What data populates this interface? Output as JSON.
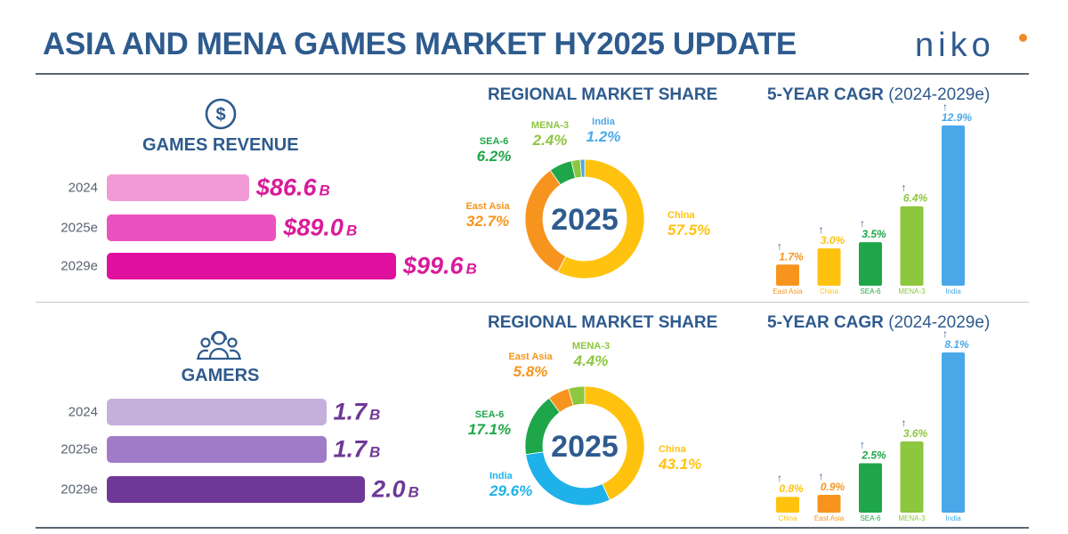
{
  "header": {
    "title": "ASIA AND MENA GAMES MARKET HY2025 UPDATE",
    "logo_text": "niko"
  },
  "revenue": {
    "title": "GAMES REVENUE",
    "icon": "dollar-circle-icon",
    "rows": [
      {
        "label": "2024",
        "amount": "$86.6",
        "unit": "B",
        "value": 86.6,
        "color": "#f19ad6"
      },
      {
        "label": "2025e",
        "amount": "$89.0",
        "unit": "B",
        "value": 89.0,
        "color": "#ec52bf"
      },
      {
        "label": "2029e",
        "amount": "$99.6",
        "unit": "B",
        "value": 99.6,
        "color": "#e0109f"
      }
    ],
    "value_color": "#d81b9a",
    "share": {
      "title": "REGIONAL MARKET SHARE",
      "center": "2025",
      "segments": [
        {
          "name": "China",
          "display": "57.5%",
          "value": 57.5,
          "color": "#ffc20e"
        },
        {
          "name": "East Asia",
          "display": "32.7%",
          "value": 32.7,
          "color": "#f7941d"
        },
        {
          "name": "SEA-6",
          "display": "6.2%",
          "value": 6.2,
          "color": "#1fa64a"
        },
        {
          "name": "MENA-3",
          "display": "2.4%",
          "value": 2.4,
          "color": "#8dc63f"
        },
        {
          "name": "India",
          "display": "1.2%",
          "value": 1.2,
          "color": "#4aa8e8"
        }
      ]
    },
    "cagr": {
      "title": "5-YEAR CAGR",
      "subtitle": "(2024-2029e)",
      "bars": [
        {
          "name": "East Asia",
          "display": "1.7%",
          "value": 1.7,
          "color": "#f7941d"
        },
        {
          "name": "China",
          "display": "3.0%",
          "value": 3.0,
          "color": "#ffc20e"
        },
        {
          "name": "SEA-6",
          "display": "3.5%",
          "value": 3.5,
          "color": "#1fa64a"
        },
        {
          "name": "MENA-3",
          "display": "6.4%",
          "value": 6.4,
          "color": "#8dc63f"
        },
        {
          "name": "India",
          "display": "12.9%",
          "value": 12.9,
          "color": "#4aa8e8"
        }
      ]
    }
  },
  "gamers": {
    "title": "GAMERS",
    "icon": "gamers-headset-icon",
    "rows": [
      {
        "label": "2024",
        "amount": "1.7",
        "unit": "B",
        "value": 1.7,
        "color": "#c5b0dc"
      },
      {
        "label": "2025e",
        "amount": "1.7",
        "unit": "B",
        "value": 1.7,
        "color": "#a17bc7"
      },
      {
        "label": "2029e",
        "amount": "2.0",
        "unit": "B",
        "value": 2.0,
        "color": "#6f3896"
      }
    ],
    "value_color": "#6f3896",
    "share": {
      "title": "REGIONAL MARKET SHARE",
      "center": "2025",
      "segments": [
        {
          "name": "China",
          "display": "43.1%",
          "value": 43.1,
          "color": "#ffc20e"
        },
        {
          "name": "India",
          "display": "29.6%",
          "value": 29.6,
          "color": "#1eb1ea"
        },
        {
          "name": "SEA-6",
          "display": "17.1%",
          "value": 17.1,
          "color": "#1fa64a"
        },
        {
          "name": "East Asia",
          "display": "5.8%",
          "value": 5.8,
          "color": "#f7941d"
        },
        {
          "name": "MENA-3",
          "display": "4.4%",
          "value": 4.4,
          "color": "#8dc63f"
        }
      ]
    },
    "cagr": {
      "title": "5-YEAR CAGR",
      "subtitle": "(2024-2029e)",
      "bars": [
        {
          "name": "China",
          "display": "0.8%",
          "value": 0.8,
          "color": "#ffc20e"
        },
        {
          "name": "East Asia",
          "display": "0.9%",
          "value": 0.9,
          "color": "#f7941d"
        },
        {
          "name": "SEA-6",
          "display": "2.5%",
          "value": 2.5,
          "color": "#1fa64a"
        },
        {
          "name": "MENA-3",
          "display": "3.6%",
          "value": 3.6,
          "color": "#8dc63f"
        },
        {
          "name": "India",
          "display": "8.1%",
          "value": 8.1,
          "color": "#4aa8e8"
        }
      ]
    }
  },
  "chart_data": [
    {
      "type": "bar",
      "title": "GAMES REVENUE",
      "categories": [
        "2024",
        "2025e",
        "2029e"
      ],
      "values": [
        86.6,
        89.0,
        99.6
      ],
      "unit": "$B",
      "orientation": "horizontal"
    },
    {
      "type": "pie",
      "title": "REGIONAL MARKET SHARE",
      "center_label": "2025",
      "categories": [
        "China",
        "East Asia",
        "SEA-6",
        "MENA-3",
        "India"
      ],
      "values": [
        57.5,
        32.7,
        6.2,
        2.4,
        1.2
      ],
      "unit": "%"
    },
    {
      "type": "bar",
      "title": "5-YEAR CAGR (2024-2029e)",
      "categories": [
        "East Asia",
        "China",
        "SEA-6",
        "MENA-3",
        "India"
      ],
      "values": [
        1.7,
        3.0,
        3.5,
        6.4,
        12.9
      ],
      "unit": "%"
    },
    {
      "type": "bar",
      "title": "GAMERS",
      "categories": [
        "2024",
        "2025e",
        "2029e"
      ],
      "values": [
        1.7,
        1.7,
        2.0
      ],
      "unit": "B",
      "orientation": "horizontal"
    },
    {
      "type": "pie",
      "title": "REGIONAL MARKET SHARE",
      "center_label": "2025",
      "categories": [
        "China",
        "India",
        "SEA-6",
        "East Asia",
        "MENA-3"
      ],
      "values": [
        43.1,
        29.6,
        17.1,
        5.8,
        4.4
      ],
      "unit": "%"
    },
    {
      "type": "bar",
      "title": "5-YEAR CAGR (2024-2029e)",
      "categories": [
        "China",
        "East Asia",
        "SEA-6",
        "MENA-3",
        "India"
      ],
      "values": [
        0.8,
        0.9,
        2.5,
        3.6,
        8.1
      ],
      "unit": "%"
    }
  ]
}
